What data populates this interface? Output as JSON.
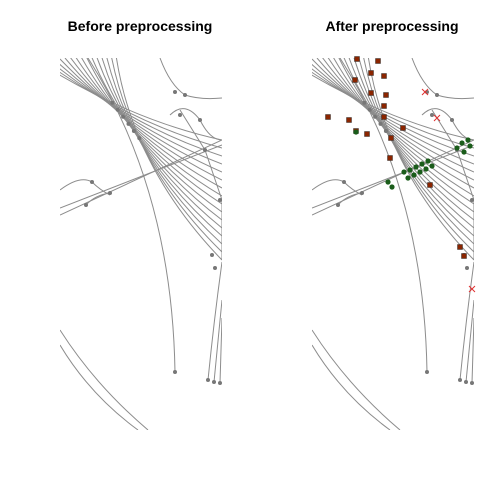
{
  "panels": [
    {
      "title": "Before preprocessing"
    },
    {
      "title": "After preprocessing"
    }
  ]
}
